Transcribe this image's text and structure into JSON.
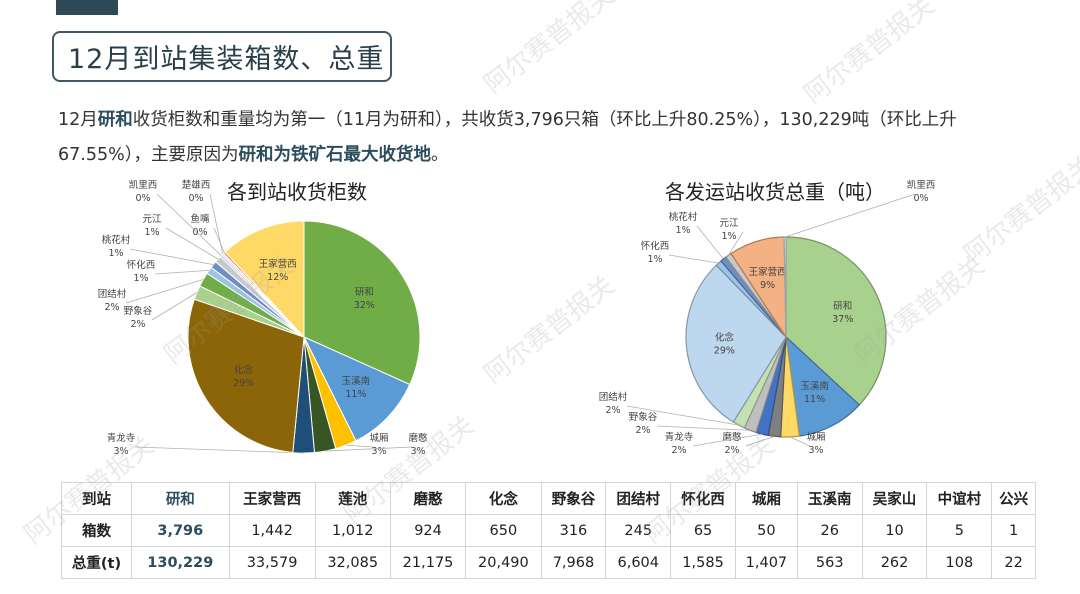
{
  "title": "12月到站集装箱数、总重",
  "summary": {
    "p1": "12月",
    "hl1": "研和",
    "p2": "收货柜数和重量均为第一（11月为研和），共收货3,796只箱（环比上升80.25%），130,229吨（环比上升67.55%），主要原因为",
    "hl2": "研和为铁矿石最大收货地",
    "p3": "。"
  },
  "watermark_text": "阿尔赛普报关",
  "chart_data": [
    {
      "type": "pie",
      "title": "各到站收货柜数",
      "slices": [
        {
          "label": "研和",
          "value": 32,
          "display": "32%",
          "color": "#70ad47"
        },
        {
          "label": "玉溪南",
          "value": 11,
          "display": "11%",
          "color": "#5b9bd5"
        },
        {
          "label": "城厢",
          "value": 3,
          "display": "3%",
          "color": "#ffc000"
        },
        {
          "label": "磨憨",
          "value": 3,
          "display": "3%",
          "color": "#375623"
        },
        {
          "label": "青龙寺",
          "value": 3,
          "display": "3%",
          "color": "#1f4e79"
        },
        {
          "label": "化念",
          "value": 29,
          "display": "29%",
          "color": "#8b6508"
        },
        {
          "label": "野象谷",
          "value": 2,
          "display": "2%",
          "color": "#a9d18e"
        },
        {
          "label": "团结村",
          "value": 2,
          "display": "2%",
          "color": "#70ad47"
        },
        {
          "label": "怀化西",
          "value": 1,
          "display": "1%",
          "color": "#9dc3e6"
        },
        {
          "label": "桃花村",
          "value": 1,
          "display": "1%",
          "color": "#6e8fc4"
        },
        {
          "label": "元江",
          "value": 1,
          "display": "1%",
          "color": "#c9c9c9"
        },
        {
          "label": "凯里西",
          "value": 0.3,
          "display": "0%",
          "color": "#b4c7e7"
        },
        {
          "label": "楚雄西",
          "value": 0.3,
          "display": "0%",
          "color": "#d9d9d9"
        },
        {
          "label": "鱼嘴",
          "value": 0.3,
          "display": "0%",
          "color": "#ed7d31"
        },
        {
          "label": "王家营西",
          "value": 12,
          "display": "12%",
          "color": "#ffd966"
        }
      ]
    },
    {
      "type": "pie",
      "title": "各发运站收货总重（吨）",
      "slices": [
        {
          "label": "研和",
          "value": 37,
          "display": "37%",
          "color": "#a9d18e"
        },
        {
          "label": "玉溪南",
          "value": 11,
          "display": "11%",
          "color": "#5b9bd5"
        },
        {
          "label": "城厢",
          "value": 3,
          "display": "3%",
          "color": "#ffd966"
        },
        {
          "label": "磨憨",
          "value": 2,
          "display": "2%",
          "color": "#7f7f7f"
        },
        {
          "label": "青龙寺",
          "value": 2,
          "display": "2%",
          "color": "#4472c4"
        },
        {
          "label": "野象谷",
          "value": 2,
          "display": "2%",
          "color": "#bfbfbf"
        },
        {
          "label": "团结村",
          "value": 2,
          "display": "2%",
          "color": "#c5e0b4"
        },
        {
          "label": "化念",
          "value": 29,
          "display": "29%",
          "color": "#bdd7ee"
        },
        {
          "label": "怀化西",
          "value": 1,
          "display": "1%",
          "color": "#9dc3e6"
        },
        {
          "label": "桃花村",
          "value": 1,
          "display": "1%",
          "color": "#6e8fc4"
        },
        {
          "label": "元江",
          "value": 1,
          "display": "1%",
          "color": "#c9c9c9"
        },
        {
          "label": "王家营西",
          "value": 9,
          "display": "9%",
          "color": "#f4b183"
        },
        {
          "label": "凯里西",
          "value": 0.3,
          "display": "0%",
          "color": "#deebf7"
        }
      ]
    },
    {
      "type": "table",
      "columns": [
        "到站",
        "研和",
        "王家营西",
        "莲池",
        "磨憨",
        "化念",
        "野象谷",
        "团结村",
        "怀化西",
        "城厢",
        "玉溪南",
        "吴家山",
        "中谊村",
        "公兴"
      ],
      "rows": [
        [
          "箱数",
          "3,796",
          "1,442",
          "1,012",
          "924",
          "650",
          "316",
          "245",
          "65",
          "50",
          "26",
          "10",
          "5",
          "1"
        ],
        [
          "总重(t)",
          "130,229",
          "33,579",
          "32,085",
          "21,175",
          "20,490",
          "7,968",
          "6,604",
          "1,585",
          "1,407",
          "563",
          "262",
          "108",
          "22"
        ]
      ]
    }
  ]
}
